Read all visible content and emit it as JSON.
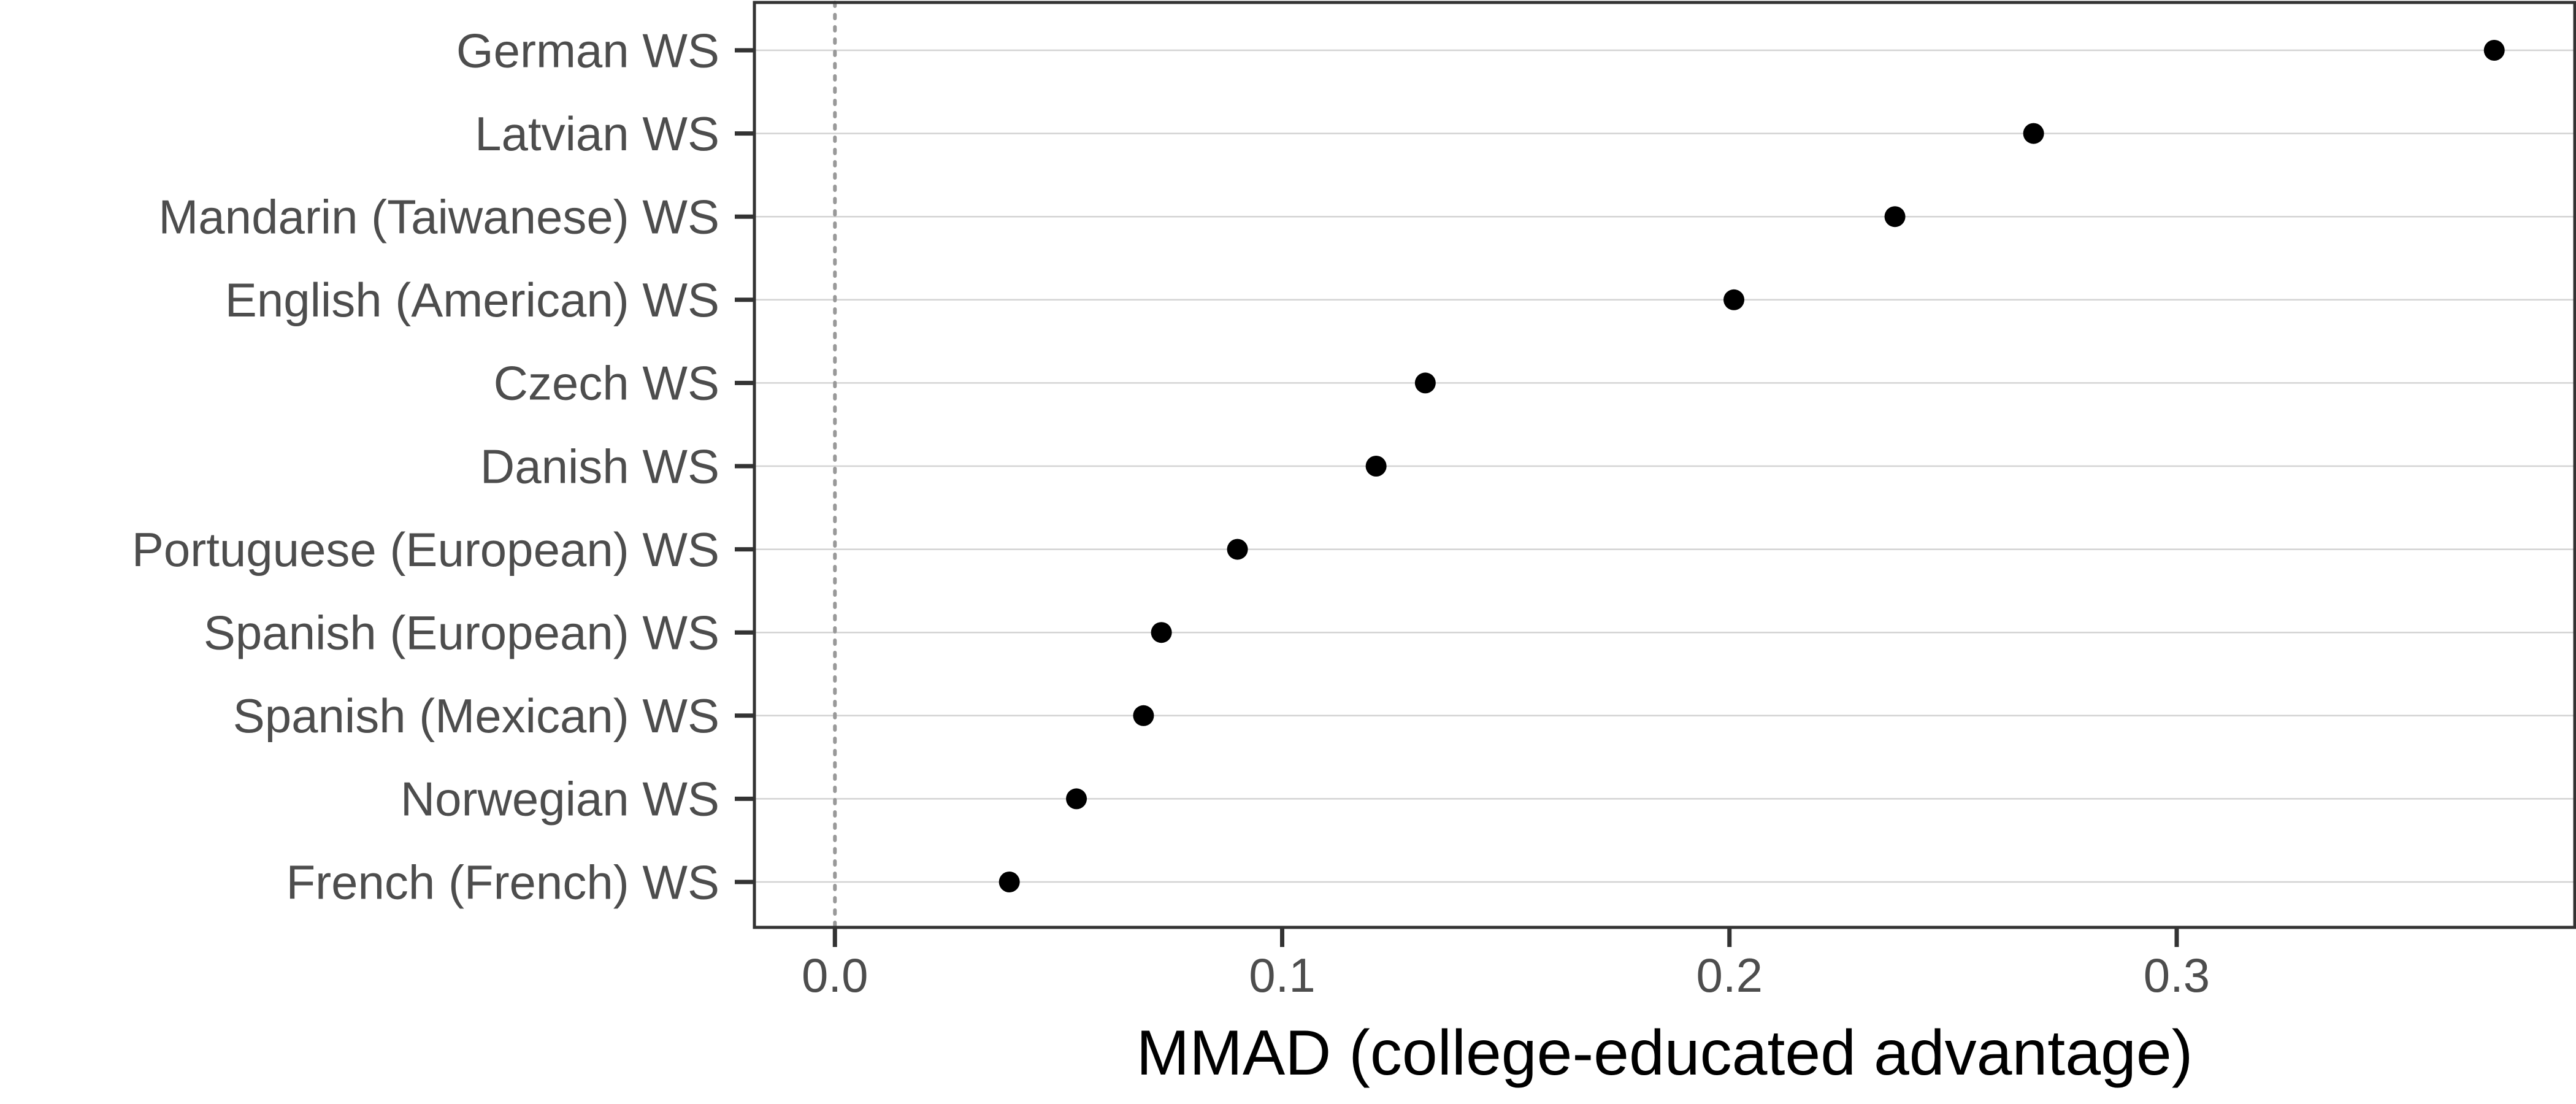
{
  "chart_data": {
    "type": "scatter",
    "title": "",
    "xlabel": "MMAD (college-educated advantage)",
    "ylabel": "",
    "xlim": [
      -0.018,
      0.389
    ],
    "x_ticks": [
      {
        "value": 0.0,
        "label": "0.0"
      },
      {
        "value": 0.1,
        "label": "0.1"
      },
      {
        "value": 0.2,
        "label": "0.2"
      },
      {
        "value": 0.3,
        "label": "0.3"
      }
    ],
    "reference_line": {
      "x": 0.0,
      "style": "dotted"
    },
    "grid": {
      "horizontal": true,
      "vertical": false
    },
    "categories": [
      "German WS",
      "Latvian WS",
      "Mandarin (Taiwanese) WS",
      "English (American) WS",
      "Czech WS",
      "Danish WS",
      "Portuguese (European) WS",
      "Spanish (European) WS",
      "Spanish (Mexican) WS",
      "Norwegian WS",
      "French (French) WS"
    ],
    "values": [
      0.371,
      0.268,
      0.237,
      0.201,
      0.132,
      0.121,
      0.09,
      0.073,
      0.069,
      0.054,
      0.039
    ],
    "colors": {
      "point": "#000000",
      "grid": "#d3d3d3",
      "reference": "#999999",
      "frame": "#333333"
    }
  }
}
